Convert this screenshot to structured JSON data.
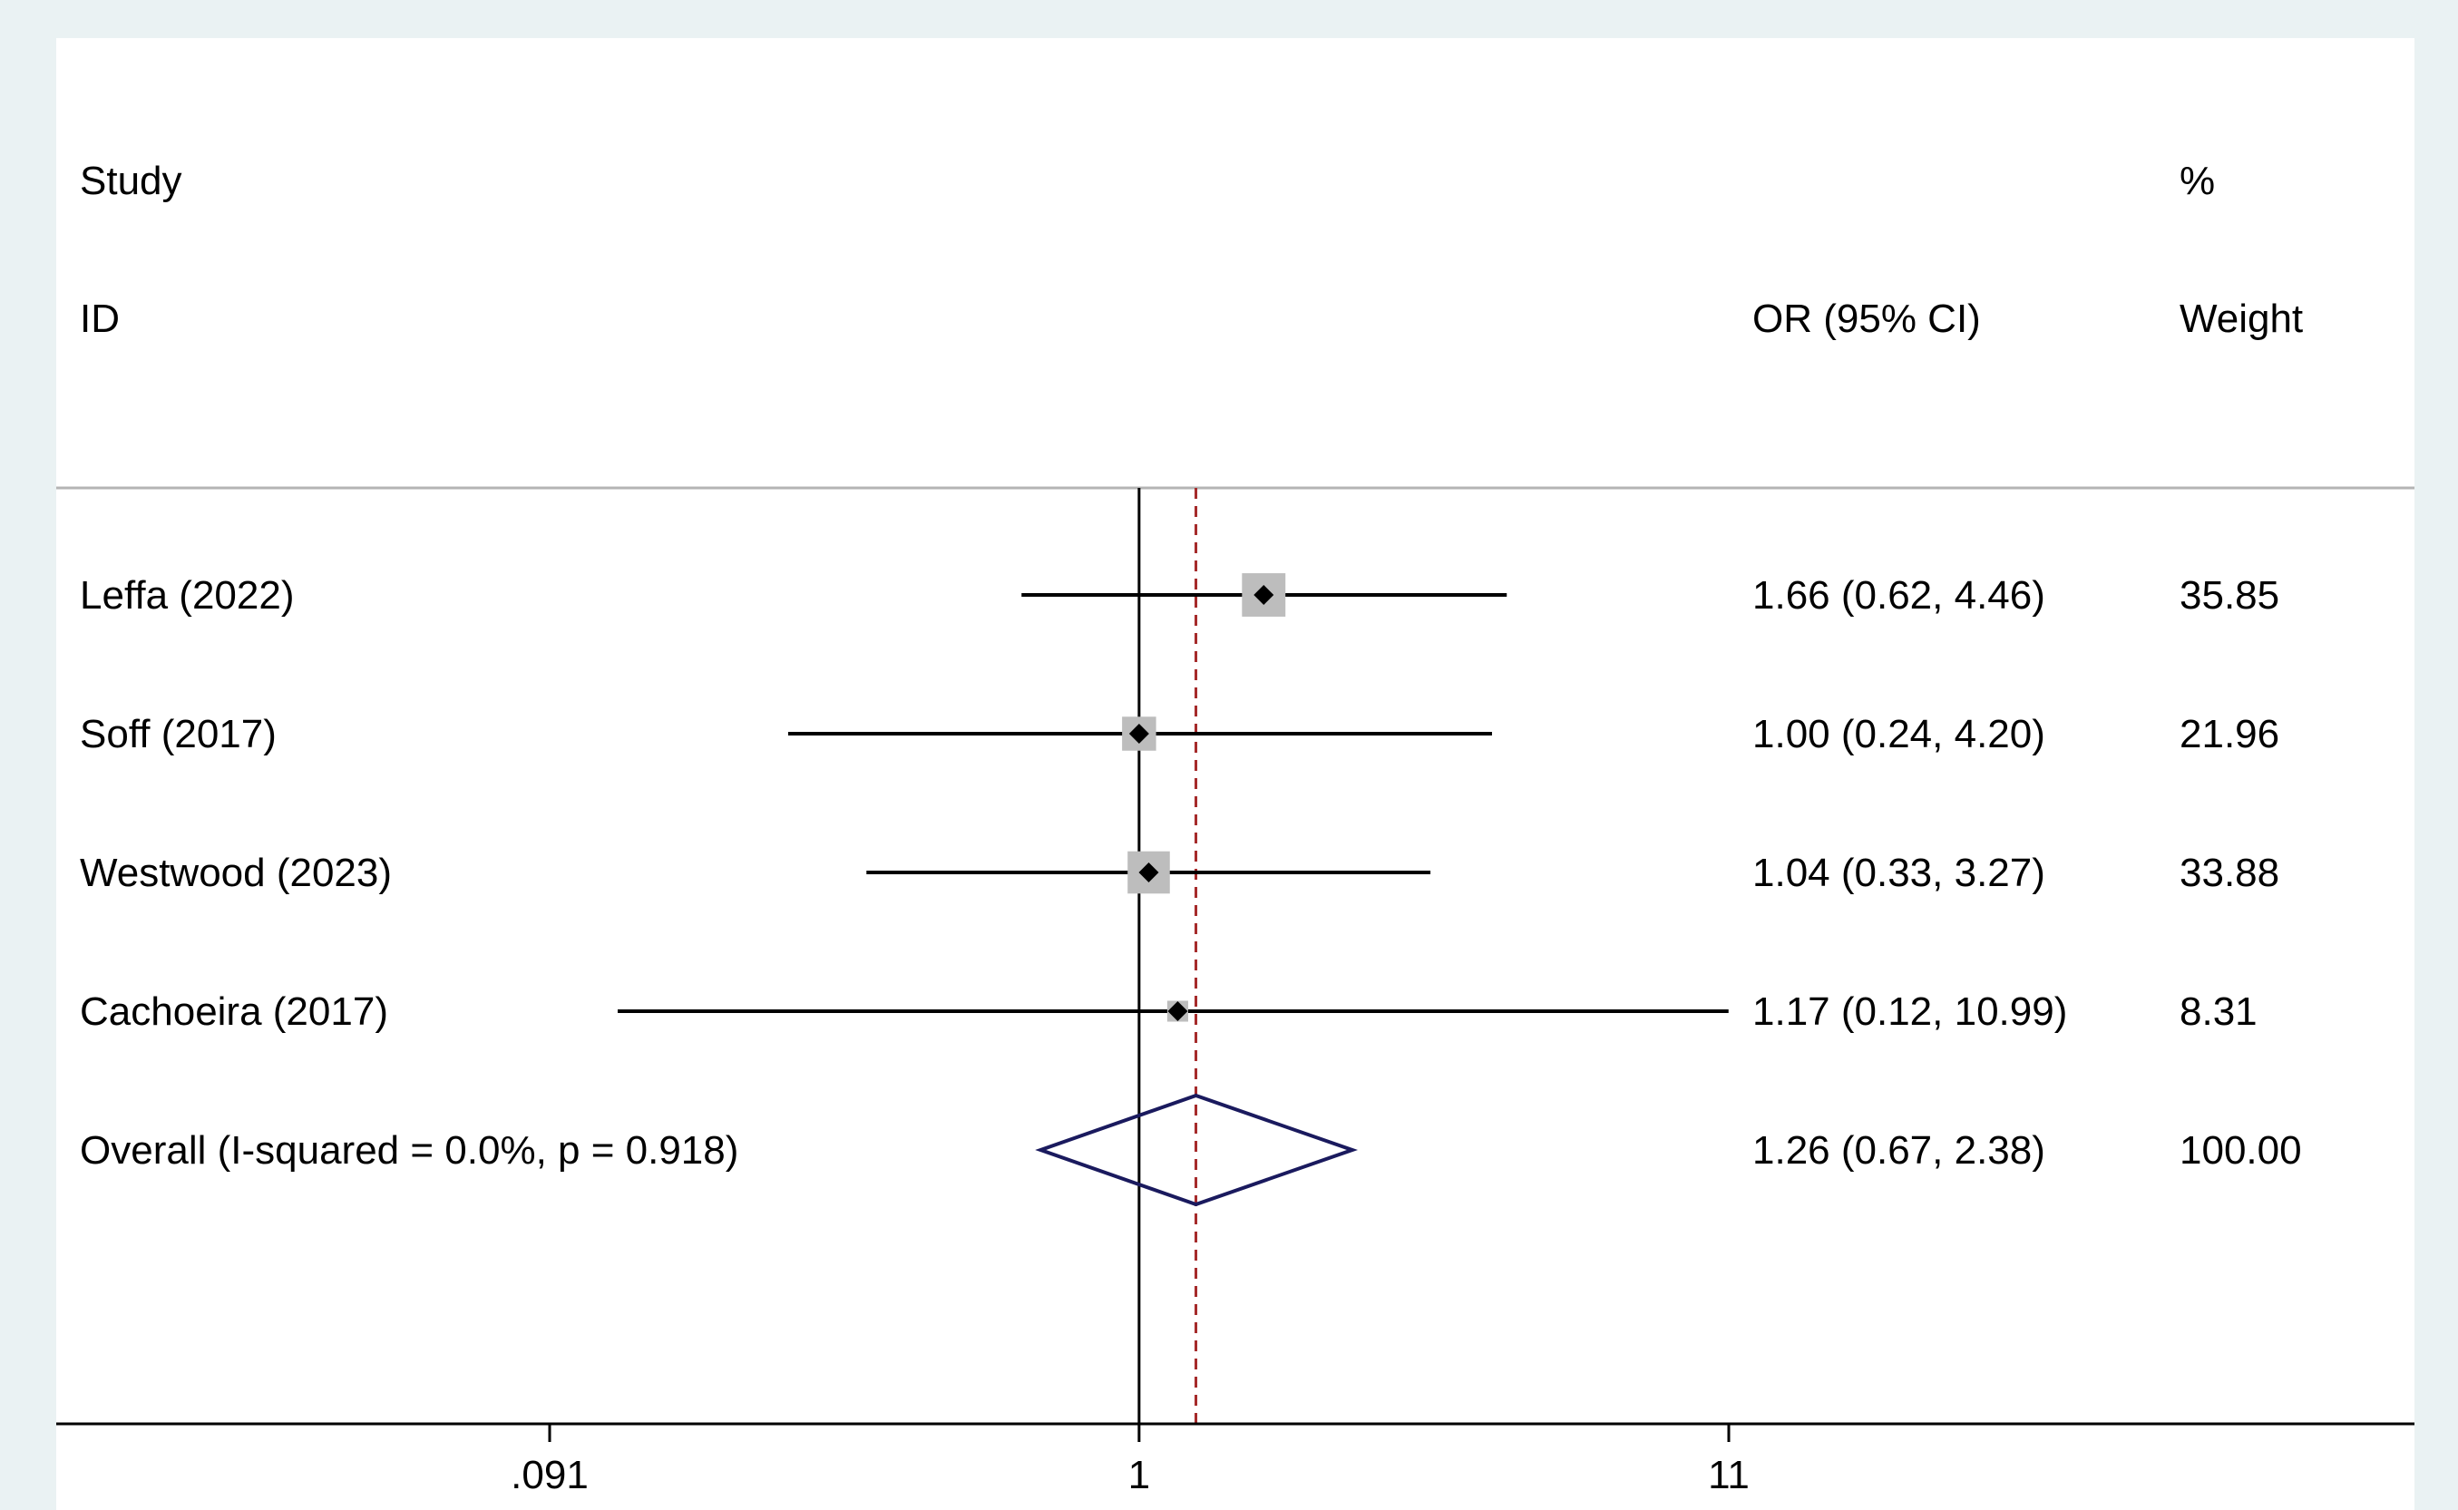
{
  "chart_data": {
    "type": "forest",
    "headers": {
      "study_line1": "Study",
      "study_line2": "ID",
      "effect": "OR (95% CI)",
      "weight_line1": "%",
      "weight_line2": "Weight"
    },
    "studies": [
      {
        "label": "Leffa (2022)",
        "or": 1.66,
        "lo": 0.62,
        "hi": 4.46,
        "ci_text": "1.66 (0.62, 4.46)",
        "weight": "35.85",
        "w": 35.85
      },
      {
        "label": "Soff (2017)",
        "or": 1.0,
        "lo": 0.24,
        "hi": 4.2,
        "ci_text": "1.00 (0.24, 4.20)",
        "weight": "21.96",
        "w": 21.96
      },
      {
        "label": "Westwood (2023)",
        "or": 1.04,
        "lo": 0.33,
        "hi": 3.27,
        "ci_text": "1.04 (0.33, 3.27)",
        "weight": "33.88",
        "w": 33.88
      },
      {
        "label": "Cachoeira (2017)",
        "or": 1.17,
        "lo": 0.12,
        "hi": 10.99,
        "ci_text": "1.17 (0.12, 10.99)",
        "weight": "8.31",
        "w": 8.31
      }
    ],
    "overall": {
      "label": "Overall  (I-squared = 0.0%, p = 0.918)",
      "or": 1.26,
      "lo": 0.67,
      "hi": 2.38,
      "ci_text": "1.26 (0.67, 2.38)",
      "weight": "100.00"
    },
    "x_axis": {
      "scale": "log",
      "range": [
        0.091,
        11
      ],
      "ticks": [
        {
          "value": 0.091,
          "label": ".091"
        },
        {
          "value": 1,
          "label": "1"
        },
        {
          "value": 11,
          "label": "11"
        }
      ]
    },
    "reference_line": 1,
    "colors": {
      "background": "#eaf2f3",
      "plot": "#ffffff",
      "box": "#bdbdbd",
      "point": "#000000",
      "diamond": "#1a1a5e",
      "overall_line": "#a52a2a"
    }
  }
}
